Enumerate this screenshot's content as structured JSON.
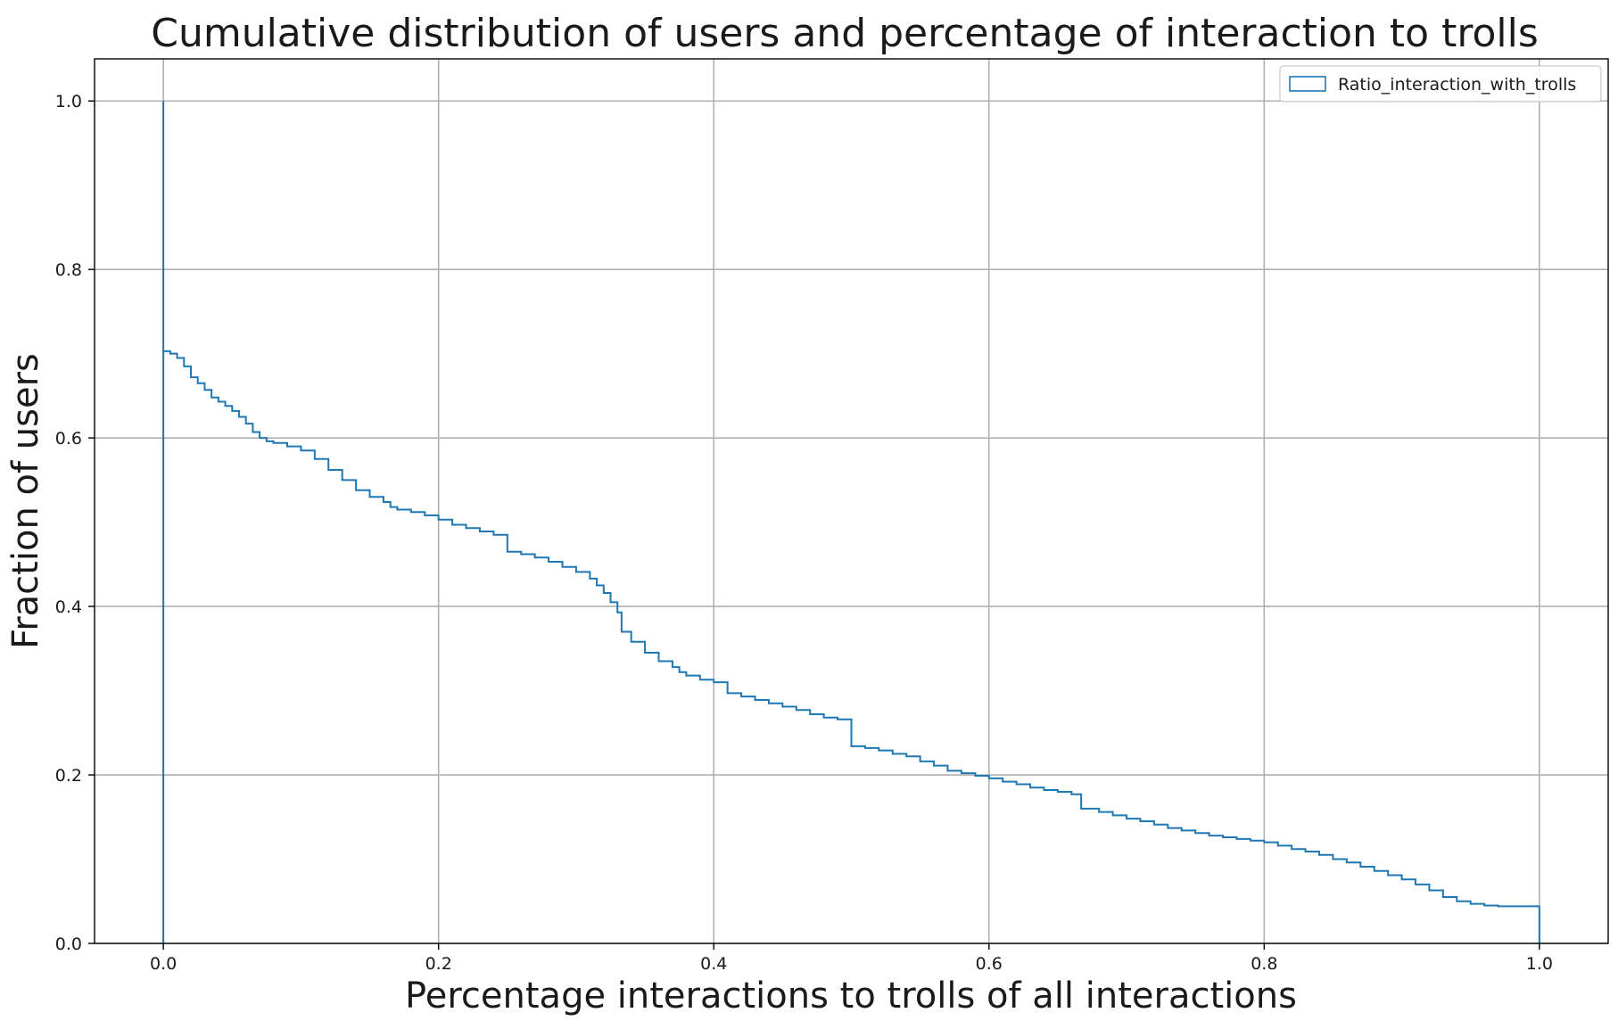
{
  "chart_data": {
    "type": "line",
    "drawstyle": "steps",
    "title": "Cumulative distribution of users and percentage of interaction to trolls",
    "xlabel": "Percentage interactions to trolls of all interactions",
    "ylabel": "Fraction of users",
    "xlim": [
      -0.05,
      1.05
    ],
    "ylim": [
      0.0,
      1.05
    ],
    "x_ticks": [
      0.0,
      0.2,
      0.4,
      0.6,
      0.8,
      1.0
    ],
    "x_tick_labels": [
      "0.0",
      "0.2",
      "0.4",
      "0.6",
      "0.8",
      "1.0"
    ],
    "y_ticks": [
      0.0,
      0.2,
      0.4,
      0.6,
      0.8,
      1.0
    ],
    "y_tick_labels": [
      "0.0",
      "0.2",
      "0.4",
      "0.6",
      "0.8",
      "1.0"
    ],
    "grid": true,
    "legend_position": "top-right",
    "series": [
      {
        "name": "Ratio_interaction_with_trolls",
        "color": "#1f77b4",
        "x": [
          0.0,
          0.0,
          0.0,
          0.005,
          0.01,
          0.015,
          0.02,
          0.025,
          0.03,
          0.035,
          0.04,
          0.045,
          0.05,
          0.055,
          0.06,
          0.065,
          0.07,
          0.075,
          0.08,
          0.09,
          0.1,
          0.11,
          0.12,
          0.13,
          0.14,
          0.15,
          0.16,
          0.165,
          0.17,
          0.18,
          0.19,
          0.2,
          0.21,
          0.22,
          0.23,
          0.24,
          0.25,
          0.25,
          0.26,
          0.27,
          0.28,
          0.29,
          0.3,
          0.31,
          0.315,
          0.32,
          0.325,
          0.33,
          0.333,
          0.333,
          0.34,
          0.35,
          0.36,
          0.37,
          0.375,
          0.38,
          0.39,
          0.4,
          0.41,
          0.42,
          0.43,
          0.44,
          0.45,
          0.46,
          0.47,
          0.48,
          0.49,
          0.5,
          0.5,
          0.51,
          0.52,
          0.53,
          0.54,
          0.55,
          0.56,
          0.57,
          0.58,
          0.59,
          0.6,
          0.61,
          0.62,
          0.63,
          0.64,
          0.65,
          0.66,
          0.667,
          0.667,
          0.68,
          0.69,
          0.7,
          0.71,
          0.72,
          0.73,
          0.74,
          0.75,
          0.76,
          0.77,
          0.78,
          0.79,
          0.8,
          0.81,
          0.82,
          0.83,
          0.84,
          0.85,
          0.86,
          0.87,
          0.88,
          0.89,
          0.9,
          0.91,
          0.92,
          0.93,
          0.94,
          0.95,
          0.96,
          0.97,
          0.98,
          0.99,
          1.0,
          1.0
        ],
        "y": [
          0.0,
          1.0,
          0.703,
          0.7,
          0.695,
          0.685,
          0.672,
          0.665,
          0.657,
          0.648,
          0.643,
          0.638,
          0.632,
          0.625,
          0.617,
          0.607,
          0.6,
          0.596,
          0.594,
          0.59,
          0.585,
          0.575,
          0.562,
          0.55,
          0.538,
          0.53,
          0.524,
          0.518,
          0.515,
          0.512,
          0.508,
          0.503,
          0.497,
          0.493,
          0.489,
          0.485,
          0.481,
          0.465,
          0.462,
          0.458,
          0.453,
          0.447,
          0.441,
          0.433,
          0.425,
          0.416,
          0.405,
          0.393,
          0.385,
          0.37,
          0.358,
          0.345,
          0.335,
          0.328,
          0.322,
          0.318,
          0.313,
          0.31,
          0.297,
          0.293,
          0.289,
          0.285,
          0.281,
          0.277,
          0.272,
          0.268,
          0.266,
          0.264,
          0.234,
          0.232,
          0.229,
          0.225,
          0.222,
          0.216,
          0.211,
          0.205,
          0.202,
          0.199,
          0.196,
          0.192,
          0.189,
          0.185,
          0.182,
          0.18,
          0.177,
          0.175,
          0.16,
          0.156,
          0.152,
          0.148,
          0.145,
          0.141,
          0.137,
          0.134,
          0.131,
          0.128,
          0.126,
          0.124,
          0.122,
          0.12,
          0.116,
          0.112,
          0.109,
          0.105,
          0.1,
          0.096,
          0.091,
          0.086,
          0.081,
          0.076,
          0.07,
          0.063,
          0.055,
          0.05,
          0.047,
          0.045,
          0.044,
          0.044,
          0.044,
          0.043,
          0.0
        ]
      }
    ]
  }
}
